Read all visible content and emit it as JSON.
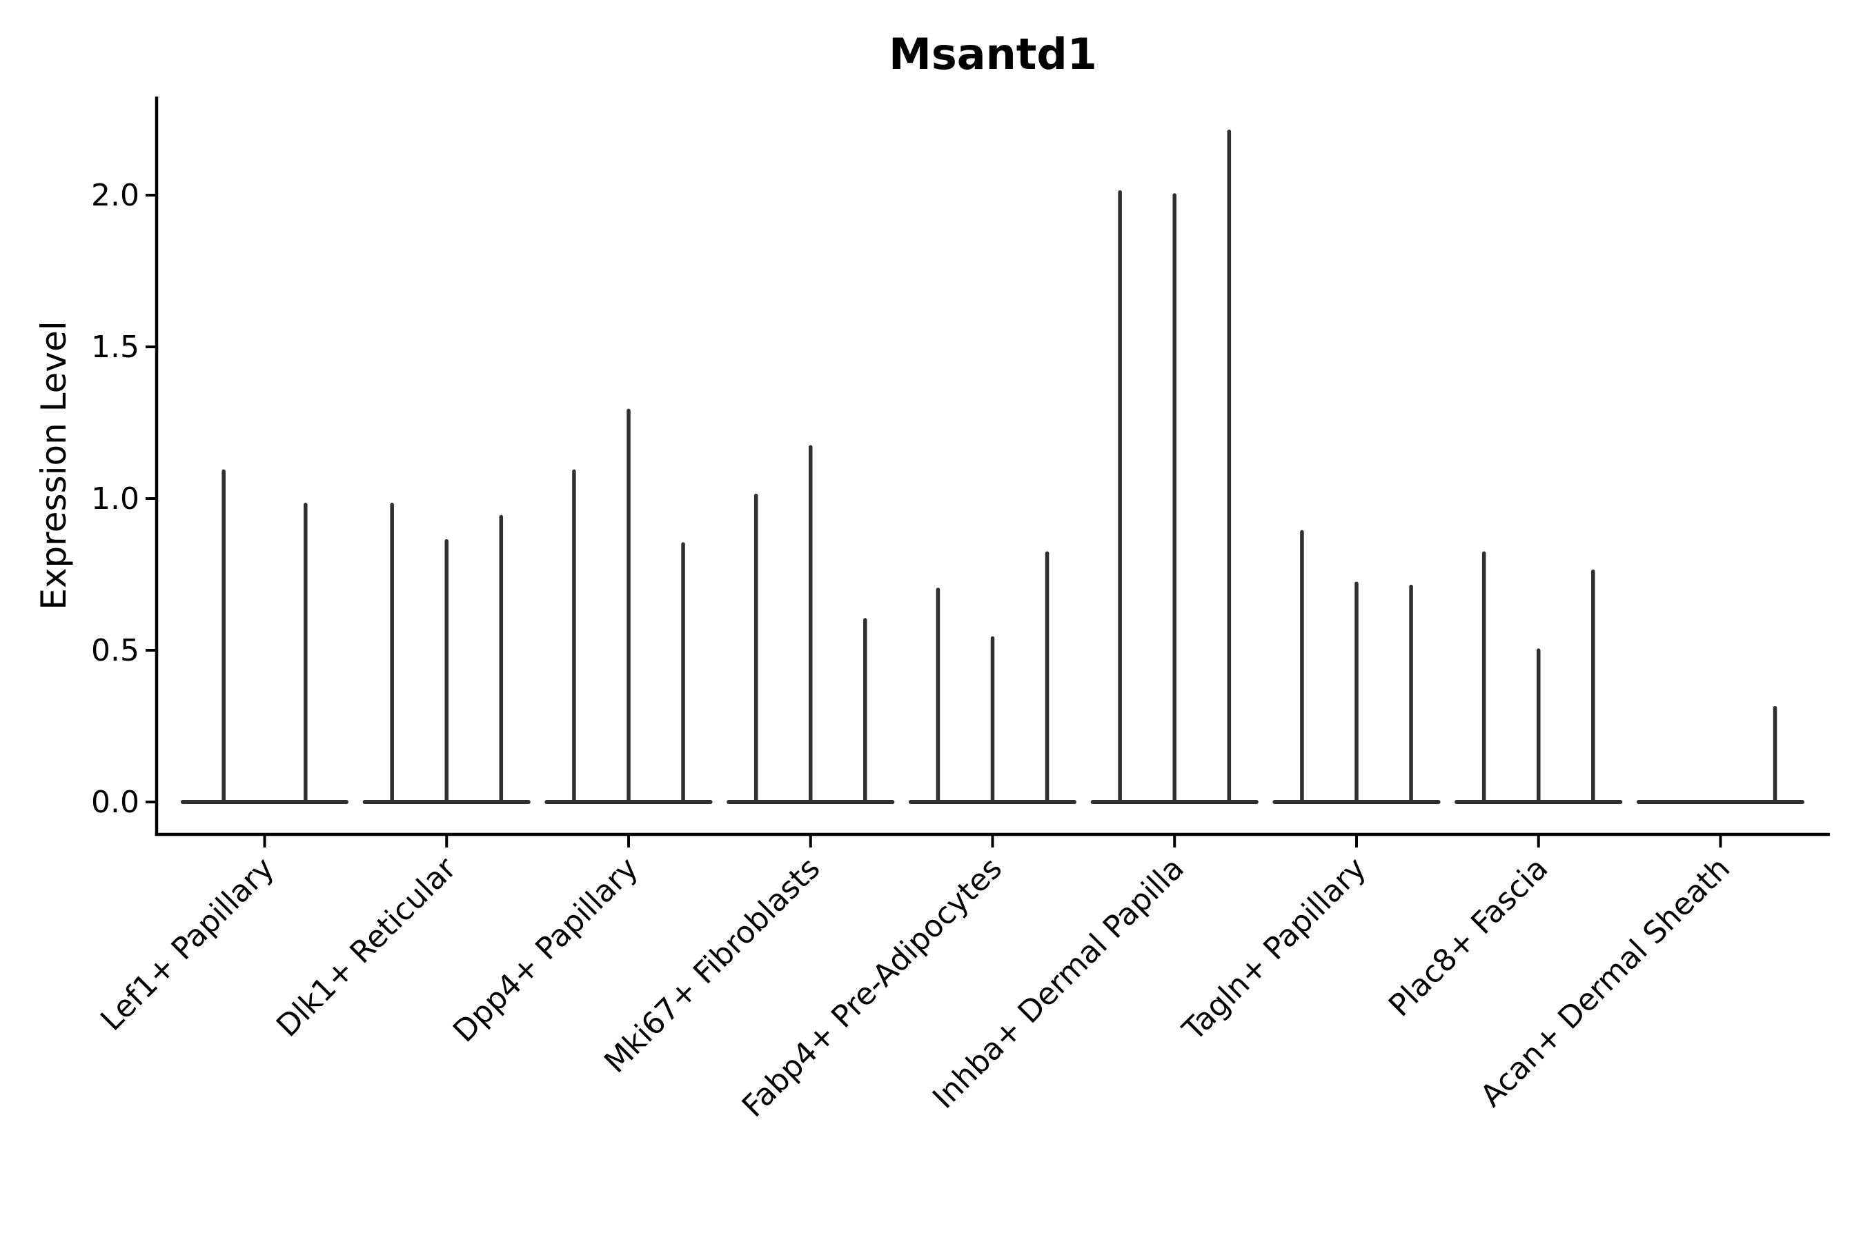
{
  "title": "Msantd1",
  "colors": {
    "background": "#ffffff",
    "violin": "#2f2f2f",
    "axis": "#000000",
    "text": "#000000"
  },
  "chart_data": {
    "type": "violin",
    "title": "Msantd1",
    "xlabel": "",
    "ylabel": "Expression Level",
    "yticks": [
      0.0,
      0.5,
      1.0,
      1.5,
      2.0
    ],
    "ylim": [
      -0.107,
      2.325
    ],
    "grid": false,
    "legend": "none",
    "description": "Thin violin plots of gene expression; each category holds 2-3 violins whose bodies collapse to a flat base at 0 with a narrow spike up to the listed maximum expression value. Zero entries are flat violins with no spike.",
    "categories": [
      "Lef1+ Papillary",
      "Dlk1+ Reticular",
      "Dpp4+ Papillary",
      "Mki67+ Fibroblasts",
      "Fabp4+ Pre-Adipocytes",
      "Inhba+ Dermal Papilla",
      "Tagln+ Papillary",
      "Plac8+ Fascia",
      "Acan+ Dermal Sheath"
    ],
    "values": [
      [
        1.09,
        0.98
      ],
      [
        0.98,
        0.86,
        0.94
      ],
      [
        1.09,
        1.29,
        0.85
      ],
      [
        1.01,
        1.17,
        0.6
      ],
      [
        0.7,
        0.54,
        0.82
      ],
      [
        2.01,
        2.0,
        2.21
      ],
      [
        0.89,
        0.72,
        0.71
      ],
      [
        0.82,
        0.5,
        0.76
      ],
      [
        0.0,
        0.0,
        0.31
      ]
    ]
  }
}
